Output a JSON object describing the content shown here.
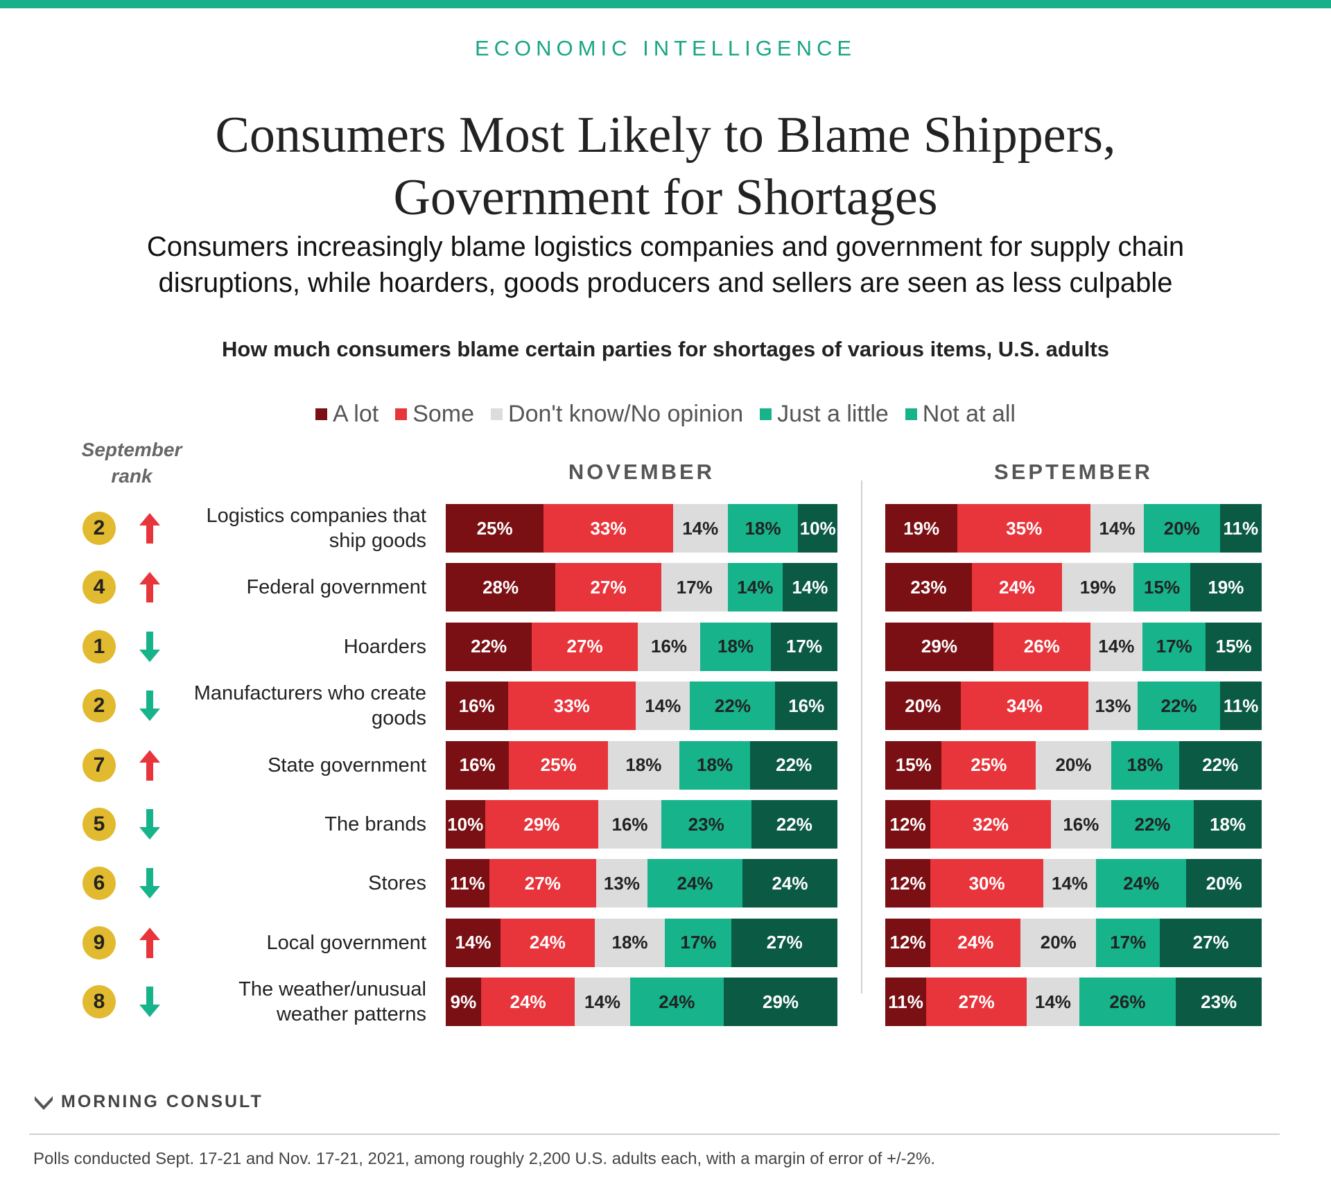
{
  "header": {
    "kicker": "ECONOMIC INTELLIGENCE",
    "title_line1": "Consumers Most Likely to Blame Shippers,",
    "title_line2": "Government for Shortages",
    "subtitle_line1": "Consumers increasingly blame logistics companies and government for supply chain",
    "subtitle_line2": "disruptions, while hoarders, goods producers and sellers are seen as less culpable",
    "question": "How much consumers blame certain parties for shortages of various items, U.S. adults"
  },
  "rank_header_line1": "September",
  "rank_header_line2": "rank",
  "colors": {
    "a_lot": "#7a1014",
    "some": "#e8343b",
    "dont_know": "#dcdcdc",
    "just_a_little": "#17b38b",
    "not_at_all": "#0b5a43",
    "badge": "#e2ba30",
    "arrow_up": "#e8343b",
    "arrow_down": "#17b38b",
    "accent": "#17b08a"
  },
  "chart_data": {
    "type": "bar",
    "orientation": "horizontal",
    "stacked": true,
    "legend": [
      "A lot",
      "Some",
      "Don't know/No opinion",
      "Just a little",
      "Not at all"
    ],
    "legend_position": "top",
    "categories": [
      "Logistics companies that ship goods",
      "Federal government",
      "Hoarders",
      "Manufacturers who create goods",
      "State government",
      "The brands",
      "Stores",
      "Local government",
      "The weather/unusual weather patterns"
    ],
    "panels": [
      {
        "name": "NOVEMBER",
        "series": [
          {
            "name": "A lot",
            "values": [
              25,
              28,
              22,
              16,
              16,
              10,
              11,
              14,
              9
            ]
          },
          {
            "name": "Some",
            "values": [
              33,
              27,
              27,
              33,
              25,
              29,
              27,
              24,
              24
            ]
          },
          {
            "name": "Don't know/No opinion",
            "values": [
              14,
              17,
              16,
              14,
              18,
              16,
              13,
              18,
              14
            ]
          },
          {
            "name": "Just a little",
            "values": [
              18,
              14,
              18,
              22,
              18,
              23,
              24,
              17,
              24
            ]
          },
          {
            "name": "Not at all",
            "values": [
              10,
              14,
              17,
              16,
              22,
              22,
              24,
              27,
              29
            ]
          }
        ]
      },
      {
        "name": "SEPTEMBER",
        "series": [
          {
            "name": "A lot",
            "values": [
              19,
              23,
              29,
              20,
              15,
              12,
              12,
              12,
              11
            ]
          },
          {
            "name": "Some",
            "values": [
              35,
              24,
              26,
              34,
              25,
              32,
              30,
              24,
              27
            ]
          },
          {
            "name": "Don't know/No opinion",
            "values": [
              14,
              19,
              14,
              13,
              20,
              16,
              14,
              20,
              14
            ]
          },
          {
            "name": "Just a little",
            "values": [
              20,
              15,
              17,
              22,
              18,
              22,
              24,
              17,
              26
            ]
          },
          {
            "name": "Not at all",
            "values": [
              11,
              19,
              15,
              11,
              22,
              18,
              20,
              27,
              23
            ]
          }
        ]
      }
    ],
    "september_rank": [
      "2",
      "4",
      "1",
      "2",
      "7",
      "5",
      "6",
      "9",
      "8"
    ],
    "rank_change": [
      "up",
      "up",
      "down",
      "down",
      "up",
      "down",
      "down",
      "up",
      "down"
    ]
  },
  "row_labels": [
    [
      "Logistics companies that",
      "ship goods"
    ],
    [
      "Federal government"
    ],
    [
      "Hoarders"
    ],
    [
      "Manufacturers who create",
      "goods"
    ],
    [
      "State government"
    ],
    [
      "The brands"
    ],
    [
      "Stores"
    ],
    [
      "Local government"
    ],
    [
      "The weather/unusual",
      "weather patterns"
    ]
  ],
  "footer": {
    "brand": "MORNING CONSULT",
    "footnote": "Polls conducted Sept. 17-21 and Nov. 17-21, 2021, among roughly 2,200 U.S. adults each, with a margin of error of +/-2%."
  }
}
